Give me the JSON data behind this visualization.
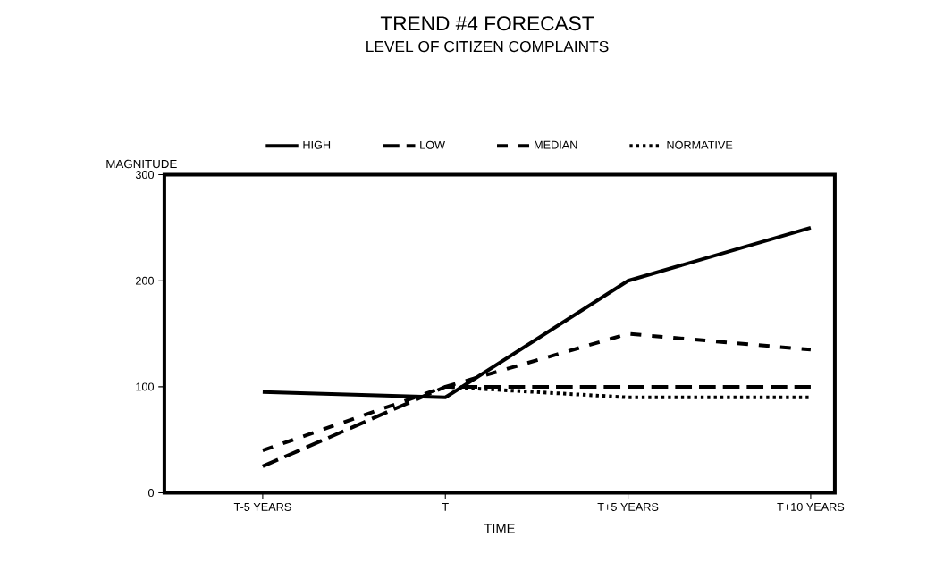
{
  "chart_data": {
    "type": "line",
    "title": "TREND #4 FORECAST",
    "subtitle": "LEVEL OF CITIZEN COMPLAINTS",
    "xlabel": "TIME",
    "ylabel": "MAGNITUDE",
    "categories": [
      "T-5 YEARS",
      "T",
      "T+5 YEARS",
      "T+10 YEARS"
    ],
    "series": [
      {
        "name": "HIGH",
        "color": "#000000",
        "line_style": "solid",
        "values": [
          95,
          90,
          200,
          250
        ]
      },
      {
        "name": "LOW",
        "color": "#000000",
        "line_style": "dashed",
        "values": [
          25,
          100,
          100,
          100
        ]
      },
      {
        "name": "MEDIAN",
        "color": "#000000",
        "line_style": "dashed",
        "values": [
          40,
          100,
          150,
          135
        ]
      },
      {
        "name": "NORMATIVE",
        "color": "#000000",
        "line_style": "dotted",
        "values": [
          null,
          100,
          90,
          90
        ]
      }
    ],
    "ylim": [
      0,
      300
    ],
    "yticks": [
      0,
      100,
      200,
      300
    ],
    "legend": "top",
    "grid": false
  }
}
